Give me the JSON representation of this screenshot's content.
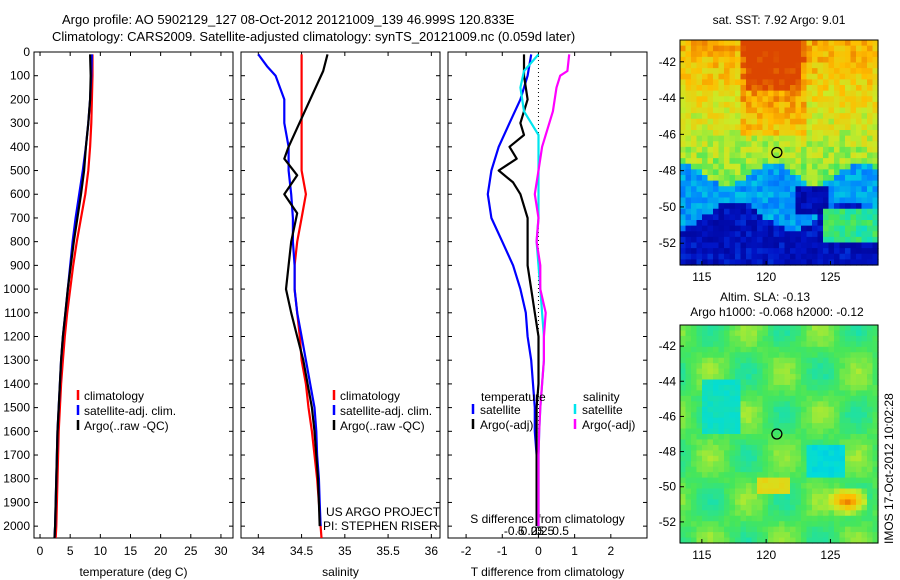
{
  "title_line1": "Argo profile: AO 5902129_127 08-Oct-2012 20121009_139 46.999S 120.833E",
  "title_line2": "Climatology: CARS2009. Satellite-adjusted climatology: synTS_20121009.nc (0.059d later)",
  "credit": "US ARGO PROJECT",
  "pi": "PI: STEPHEN RISER",
  "imos_stamp": "IMOS 17-Oct-2012 10:02:28",
  "colors": {
    "climatology": "#ff0000",
    "satellite": "#0000ff",
    "argo": "#000000",
    "salinity_sat": "#00e5ee",
    "salinity_argo": "#ff00ff"
  },
  "chart_data": [
    {
      "id": "temperature",
      "type": "line",
      "xlabel": "temperature (deg C)",
      "xlim": [
        -1,
        32
      ],
      "ylim": [
        2050,
        0
      ],
      "xticks": [
        0,
        5,
        10,
        15,
        20,
        25,
        30
      ],
      "yticks": [
        0,
        100,
        200,
        300,
        400,
        500,
        600,
        700,
        800,
        900,
        1000,
        1100,
        1200,
        1300,
        1400,
        1500,
        1600,
        1700,
        1800,
        1900,
        2000
      ],
      "series": [
        {
          "name": "climatology",
          "color": "#ff0000",
          "points": [
            [
              8.7,
              10
            ],
            [
              8.7,
              100
            ],
            [
              8.6,
              200
            ],
            [
              8.5,
              300
            ],
            [
              8.3,
              400
            ],
            [
              8.0,
              500
            ],
            [
              7.5,
              600
            ],
            [
              6.8,
              700
            ],
            [
              6.1,
              800
            ],
            [
              5.5,
              900
            ],
            [
              5.0,
              1000
            ],
            [
              4.5,
              1100
            ],
            [
              4.1,
              1200
            ],
            [
              3.8,
              1300
            ],
            [
              3.5,
              1400
            ],
            [
              3.3,
              1500
            ],
            [
              3.1,
              1600
            ],
            [
              3.0,
              1700
            ],
            [
              2.9,
              1800
            ],
            [
              2.8,
              1900
            ],
            [
              2.7,
              2000
            ],
            [
              2.6,
              2050
            ]
          ]
        },
        {
          "name": "satellite-adj. clim.",
          "color": "#0000ff",
          "points": [
            [
              8.6,
              10
            ],
            [
              8.5,
              100
            ],
            [
              8.3,
              200
            ],
            [
              8.0,
              300
            ],
            [
              7.6,
              400
            ],
            [
              7.1,
              500
            ],
            [
              6.5,
              600
            ],
            [
              5.9,
              700
            ],
            [
              5.4,
              800
            ],
            [
              5.0,
              900
            ],
            [
              4.6,
              1000
            ],
            [
              4.2,
              1100
            ],
            [
              3.8,
              1200
            ],
            [
              3.5,
              1300
            ],
            [
              3.3,
              1400
            ],
            [
              3.1,
              1500
            ],
            [
              2.9,
              1600
            ],
            [
              2.8,
              1700
            ],
            [
              2.7,
              1800
            ],
            [
              2.6,
              1900
            ],
            [
              2.5,
              2000
            ],
            [
              2.4,
              2050
            ]
          ]
        },
        {
          "name": "Argo(..raw -QC)",
          "color": "#000000",
          "points": [
            [
              8.3,
              10
            ],
            [
              8.4,
              100
            ],
            [
              8.3,
              200
            ],
            [
              8.0,
              300
            ],
            [
              7.6,
              400
            ],
            [
              7.3,
              500
            ],
            [
              6.8,
              600
            ],
            [
              6.2,
              700
            ],
            [
              5.6,
              800
            ],
            [
              5.1,
              900
            ],
            [
              4.6,
              1000
            ],
            [
              4.2,
              1100
            ],
            [
              3.8,
              1200
            ],
            [
              3.5,
              1300
            ],
            [
              3.3,
              1400
            ],
            [
              3.1,
              1500
            ],
            [
              2.9,
              1600
            ],
            [
              2.8,
              1700
            ],
            [
              2.7,
              1800
            ],
            [
              2.6,
              1900
            ],
            [
              2.5,
              2000
            ],
            [
              2.4,
              2050
            ]
          ]
        }
      ]
    },
    {
      "id": "salinity",
      "type": "line",
      "xlabel": "salinity",
      "xlim": [
        33.8,
        36.1
      ],
      "ylim": [
        2050,
        0
      ],
      "xticks": [
        34,
        34.5,
        35,
        35.5,
        36
      ],
      "series": [
        {
          "name": "climatology",
          "color": "#ff0000",
          "points": [
            [
              34.5,
              10
            ],
            [
              34.5,
              100
            ],
            [
              34.5,
              200
            ],
            [
              34.5,
              300
            ],
            [
              34.5,
              400
            ],
            [
              34.5,
              500
            ],
            [
              34.55,
              600
            ],
            [
              34.5,
              700
            ],
            [
              34.45,
              800
            ],
            [
              34.42,
              900
            ],
            [
              34.42,
              1000
            ],
            [
              34.45,
              1100
            ],
            [
              34.48,
              1200
            ],
            [
              34.5,
              1300
            ],
            [
              34.55,
              1400
            ],
            [
              34.58,
              1500
            ],
            [
              34.62,
              1600
            ],
            [
              34.65,
              1700
            ],
            [
              34.68,
              1800
            ],
            [
              34.7,
              1900
            ],
            [
              34.72,
              2000
            ],
            [
              34.73,
              2050
            ]
          ]
        },
        {
          "name": "satellite-adj. clim.",
          "color": "#0000ff",
          "points": [
            [
              34.0,
              10
            ],
            [
              34.1,
              60
            ],
            [
              34.2,
              100
            ],
            [
              34.3,
              200
            ],
            [
              34.3,
              300
            ],
            [
              34.35,
              400
            ],
            [
              34.35,
              500
            ],
            [
              34.38,
              600
            ],
            [
              34.4,
              700
            ],
            [
              34.4,
              800
            ],
            [
              34.42,
              900
            ],
            [
              34.42,
              1000
            ],
            [
              34.45,
              1100
            ],
            [
              34.5,
              1200
            ],
            [
              34.55,
              1300
            ],
            [
              34.6,
              1400
            ],
            [
              34.65,
              1500
            ],
            [
              34.67,
              1600
            ],
            [
              34.68,
              1700
            ],
            [
              34.7,
              1800
            ],
            [
              34.71,
              1900
            ],
            [
              34.72,
              2000
            ]
          ]
        },
        {
          "name": "Argo(..raw -QC)",
          "color": "#000000",
          "points": [
            [
              34.8,
              10
            ],
            [
              34.75,
              80
            ],
            [
              34.6,
              200
            ],
            [
              34.45,
              320
            ],
            [
              34.35,
              400
            ],
            [
              34.3,
              450
            ],
            [
              34.45,
              520
            ],
            [
              34.3,
              600
            ],
            [
              34.45,
              680
            ],
            [
              34.38,
              800
            ],
            [
              34.35,
              900
            ],
            [
              34.32,
              1000
            ],
            [
              34.38,
              1100
            ],
            [
              34.45,
              1200
            ],
            [
              34.52,
              1300
            ],
            [
              34.57,
              1400
            ],
            [
              34.62,
              1500
            ],
            [
              34.65,
              1600
            ],
            [
              34.67,
              1700
            ],
            [
              34.69,
              1800
            ],
            [
              34.7,
              1900
            ],
            [
              34.71,
              2000
            ]
          ]
        }
      ]
    },
    {
      "id": "difference",
      "type": "line",
      "xlabel": "T difference from climatology",
      "xlabel2": "S difference from climatology",
      "xlim": [
        -2.5,
        3.0
      ],
      "ylim": [
        2050,
        0
      ],
      "xticks": [
        -2,
        -1,
        0,
        1,
        2
      ],
      "xticks2": [
        "-0.5",
        "-0.25",
        "0",
        "0.25",
        "0.5"
      ],
      "legend": {
        "temperature": "temperature",
        "salinity": "salinity",
        "satellite": "satellite",
        "argo": "Argo(-adj)"
      },
      "series": [
        {
          "name": "temperature satellite",
          "color": "#0000ff",
          "points": [
            [
              -0.2,
              10
            ],
            [
              -0.3,
              100
            ],
            [
              -0.5,
              200
            ],
            [
              -0.8,
              300
            ],
            [
              -1.1,
              400
            ],
            [
              -1.3,
              500
            ],
            [
              -1.4,
              600
            ],
            [
              -1.3,
              700
            ],
            [
              -1.0,
              800
            ],
            [
              -0.7,
              900
            ],
            [
              -0.5,
              1000
            ],
            [
              -0.35,
              1100
            ],
            [
              -0.3,
              1200
            ],
            [
              -0.2,
              1300
            ],
            [
              -0.15,
              1400
            ],
            [
              -0.1,
              1500
            ],
            [
              -0.1,
              1600
            ],
            [
              -0.05,
              1700
            ],
            [
              -0.05,
              1800
            ],
            [
              -0.05,
              1900
            ],
            [
              -0.05,
              2000
            ]
          ]
        },
        {
          "name": "temperature Argo(-adj)",
          "color": "#000000",
          "points": [
            [
              -0.4,
              10
            ],
            [
              -0.4,
              100
            ],
            [
              -0.3,
              200
            ],
            [
              -0.5,
              300
            ],
            [
              -0.4,
              350
            ],
            [
              -0.8,
              400
            ],
            [
              -0.6,
              450
            ],
            [
              -1.1,
              500
            ],
            [
              -0.7,
              550
            ],
            [
              -0.5,
              600
            ],
            [
              -0.3,
              700
            ],
            [
              -0.3,
              800
            ],
            [
              -0.3,
              900
            ],
            [
              -0.2,
              1000
            ],
            [
              -0.1,
              1100
            ],
            [
              0.0,
              1200
            ],
            [
              0.0,
              1300
            ],
            [
              0.0,
              1400
            ],
            [
              -0.05,
              1500
            ],
            [
              -0.05,
              1600
            ],
            [
              -0.05,
              1700
            ],
            [
              -0.05,
              1800
            ],
            [
              -0.05,
              1900
            ],
            [
              -0.05,
              2000
            ]
          ]
        },
        {
          "name": "salinity satellite",
          "color": "#00e5ee",
          "points": [
            [
              0.0,
              10
            ],
            [
              -0.4,
              80
            ],
            [
              -0.5,
              150
            ],
            [
              -0.4,
              250
            ],
            [
              0.0,
              350
            ],
            [
              0.0,
              450
            ],
            [
              0.0,
              600
            ],
            [
              0.0,
              700
            ],
            [
              -0.05,
              800
            ],
            [
              0.0,
              900
            ],
            [
              0.05,
              1000
            ],
            [
              0.1,
              1100
            ],
            [
              0.15,
              1200
            ],
            [
              0.15,
              1300
            ],
            [
              0.1,
              1400
            ],
            [
              0.05,
              1500
            ],
            [
              0.02,
              1600
            ],
            [
              0.0,
              1700
            ],
            [
              0.0,
              1800
            ],
            [
              0.0,
              1900
            ],
            [
              0.0,
              2000
            ]
          ]
        },
        {
          "name": "salinity Argo(-adj)",
          "color": "#ff00ff",
          "points": [
            [
              0.85,
              10
            ],
            [
              0.8,
              80
            ],
            [
              0.6,
              100
            ],
            [
              0.5,
              150
            ],
            [
              0.4,
              250
            ],
            [
              0.1,
              400
            ],
            [
              0.0,
              500
            ],
            [
              -0.1,
              600
            ],
            [
              0.0,
              700
            ],
            [
              -0.05,
              800
            ],
            [
              0.05,
              900
            ],
            [
              0.05,
              1000
            ],
            [
              0.2,
              1100
            ],
            [
              0.15,
              1200
            ],
            [
              0.15,
              1300
            ],
            [
              0.1,
              1400
            ],
            [
              0.05,
              1500
            ],
            [
              0.02,
              1600
            ],
            [
              0.0,
              1700
            ],
            [
              0.0,
              1800
            ],
            [
              0.0,
              1900
            ],
            [
              0.0,
              2000
            ]
          ]
        }
      ]
    },
    {
      "id": "sst_map",
      "type": "heatmap",
      "title": "sat. SST: 7.92 Argo: 9.01",
      "xlim": [
        113.3,
        128.7
      ],
      "ylim": [
        -53.2,
        -40.8
      ],
      "xticks": [
        115,
        120,
        125
      ],
      "yticks": [
        -42,
        -44,
        -46,
        -48,
        -50,
        -52
      ],
      "marker": {
        "lon": 120.833,
        "lat": -46.999
      }
    },
    {
      "id": "sla_map",
      "type": "heatmap",
      "title": "Altim. SLA: -0.13",
      "subtitle": "Argo h1000: -0.068 h2000: -0.12",
      "xlim": [
        113.3,
        128.7
      ],
      "ylim": [
        -53.2,
        -40.8
      ],
      "xticks": [
        115,
        120,
        125
      ],
      "yticks": [
        -42,
        -44,
        -46,
        -48,
        -50,
        -52
      ],
      "marker": {
        "lon": 120.833,
        "lat": -46.999
      }
    }
  ]
}
